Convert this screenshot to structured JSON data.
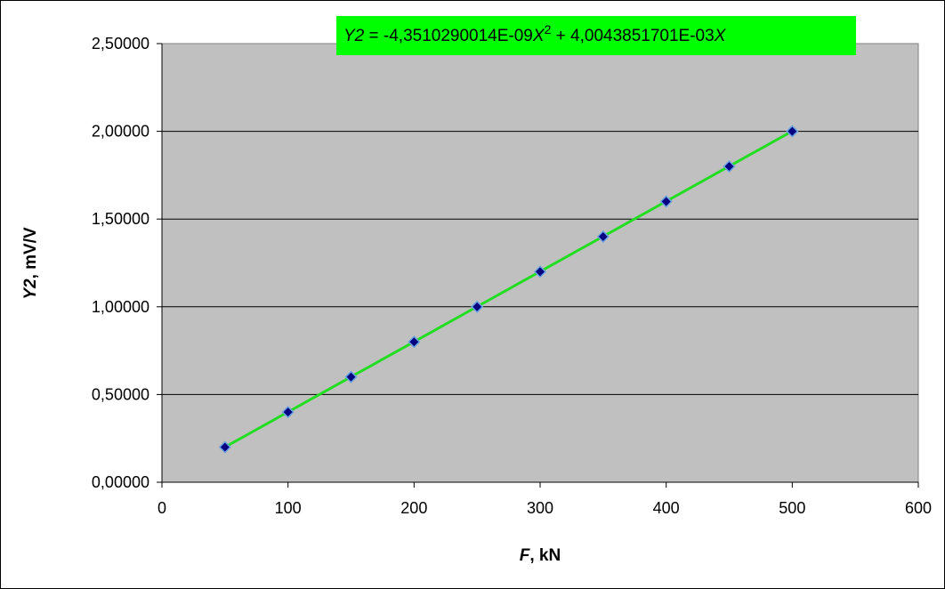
{
  "chart_data": {
    "type": "scatter",
    "title": "",
    "xlabel": {
      "var": "F",
      "unit": ", kN"
    },
    "ylabel": {
      "var": "Y2",
      "unit": ", mV/V"
    },
    "xlim": [
      0,
      600
    ],
    "ylim": [
      0,
      2.5
    ],
    "x_ticks": [
      0,
      100,
      200,
      300,
      400,
      500,
      600
    ],
    "y_ticks": [
      0,
      0.5,
      1.0,
      1.5,
      2.0,
      2.5
    ],
    "x_tick_labels": [
      "0",
      "100",
      "200",
      "300",
      "400",
      "500",
      "600"
    ],
    "y_tick_labels": [
      "0,00000",
      "0,50000",
      "1,00000",
      "1,50000",
      "2,00000",
      "2,50000"
    ],
    "grid": "horizontal",
    "series": [
      {
        "type": "scatter",
        "x": [
          50,
          100,
          150,
          200,
          250,
          300,
          350,
          400,
          450,
          500
        ],
        "y": [
          0.2,
          0.4,
          0.6,
          0.8,
          1.0,
          1.2,
          1.4,
          1.6,
          1.8,
          2.0
        ]
      }
    ],
    "trendline": {
      "type": "polynomial",
      "a2": -4.3510290014e-09,
      "a1": 0.0040043851701,
      "x_range": [
        50,
        500
      ],
      "color": "#22dd22"
    },
    "equation": {
      "lhs": "Y2",
      "eq": " = -4,3510290014E-09",
      "x1": "X",
      "exp": "2",
      "mid": " + 4,0043851701E-03",
      "x2": "X",
      "background": "#00ff00"
    },
    "colors": {
      "plot_area": "#c0c0c0",
      "marker_fill": "#000080",
      "marker_edge": "#6aa0e0"
    }
  }
}
